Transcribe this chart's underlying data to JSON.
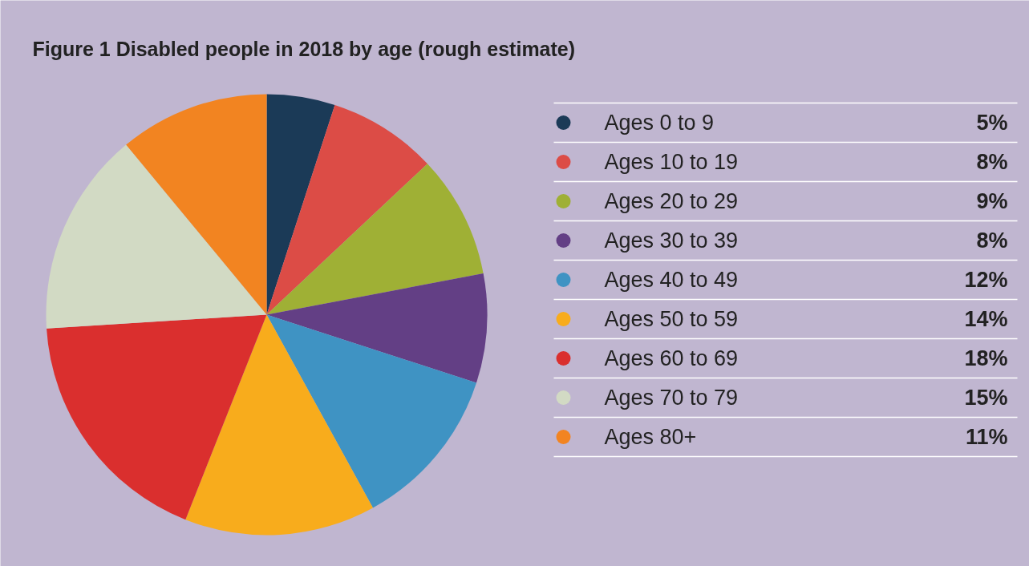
{
  "chart_data": {
    "type": "pie",
    "title": "Figure 1 Disabled people in 2018 by age (rough estimate)",
    "categories": [
      "Ages 0 to 9",
      "Ages 10 to 19",
      "Ages 20 to 29",
      "Ages 30 to 39",
      "Ages 40 to 49",
      "Ages 50 to 59",
      "Ages 60 to 69",
      "Ages 70 to 79",
      "Ages 80+"
    ],
    "values": [
      5,
      8,
      9,
      8,
      12,
      14,
      18,
      15,
      11
    ],
    "value_labels": [
      "5%",
      "8%",
      "9%",
      "8%",
      "12%",
      "14%",
      "18%",
      "15%",
      "11%"
    ],
    "colors": [
      "#1b3a57",
      "#dc4c46",
      "#9fb035",
      "#633f85",
      "#3f93c3",
      "#f8ac1c",
      "#da2f2e",
      "#d2dac4",
      "#f28421"
    ],
    "legend": "right"
  }
}
